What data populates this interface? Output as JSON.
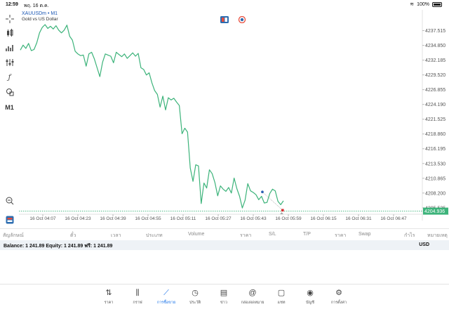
{
  "status_bar": {
    "time": "12:59",
    "date": "พฤ. 16 ต.ค.",
    "battery": "100%"
  },
  "chart": {
    "symbol": "XAUUSDm • M1",
    "description": "Gold vs US Dollar",
    "timeframe": "M1",
    "current_price_label": "4204.936",
    "line_color": "#3cb37a",
    "price_line_color": "#3cb37a"
  },
  "chart_data": {
    "type": "line",
    "y_ticks": [
      "4237.515",
      "4234.850",
      "4232.185",
      "4229.520",
      "4226.855",
      "4224.190",
      "4221.525",
      "4218.860",
      "4216.195",
      "4213.530",
      "4210.865",
      "4208.200",
      "4205.535"
    ],
    "x_ticks": [
      "16 Oct 04:07",
      "16 Oct 04:23",
      "16 Oct 04:39",
      "16 Oct 04:55",
      "16 Oct 05:11",
      "16 Oct 05:27",
      "16 Oct 05:43",
      "16 Oct 05:59",
      "16 Oct 06:15",
      "16 Oct 06:31",
      "16 Oct 06:47"
    ],
    "ylim": [
      4204.5,
      4240.5
    ],
    "current_price": 4204.936,
    "x": [
      0,
      1,
      2,
      3,
      4,
      5,
      6,
      7,
      8,
      9,
      10,
      11,
      12,
      13,
      14,
      15,
      16,
      17,
      18,
      19,
      20,
      21,
      22,
      23,
      24,
      25,
      26,
      27,
      28,
      29,
      30,
      31,
      32,
      33,
      34,
      35,
      36,
      37,
      38,
      39,
      40,
      41,
      42,
      43,
      44,
      45,
      46,
      47,
      48,
      49,
      50,
      51,
      52,
      53,
      54,
      55,
      56,
      57,
      58,
      59,
      60,
      61,
      62,
      63,
      64,
      65,
      66,
      67,
      68,
      69,
      70,
      71,
      72,
      73,
      74,
      75,
      76,
      77,
      78,
      79,
      80,
      81,
      82,
      83,
      84,
      85,
      86,
      87,
      88,
      89,
      90,
      91,
      92,
      93,
      94,
      95,
      96
    ],
    "values": [
      4234.0,
      4234.9,
      4234.3,
      4235.2,
      4233.9,
      4234.1,
      4235.3,
      4237.1,
      4238.1,
      4238.6,
      4237.9,
      4238.3,
      4237.8,
      4238.4,
      4237.6,
      4237.1,
      4237.6,
      4238.5,
      4236.5,
      4235.8,
      4233.8,
      4233.3,
      4233.0,
      4233.1,
      4231.1,
      4233.3,
      4233.6,
      4232.4,
      4230.8,
      4229.2,
      4231.8,
      4233.3,
      4233.1,
      4232.9,
      4231.7,
      4233.6,
      4233.2,
      4232.8,
      4233.3,
      4232.5,
      4233.0,
      4233.5,
      4232.9,
      4233.4,
      4230.8,
      4230.5,
      4229.5,
      4229.9,
      4228.1,
      4226.7,
      4226.0,
      4223.7,
      4225.7,
      4223.2,
      4225.4,
      4225.0,
      4225.3,
      4224.6,
      4224.0,
      4218.9,
      4219.9,
      4219.2,
      4212.7,
      4210.3,
      4213.3,
      4213.1,
      4206.3,
      4210.0,
      4209.1,
      4212.4,
      4211.7,
      4210.1,
      4207.7,
      4209.5,
      4208.9,
      4208.5,
      4209.2,
      4208.2,
      4210.9,
      4209.0,
      4207.6,
      4205.5,
      4206.9,
      4209.9,
      4208.6,
      4208.3,
      4207.9,
      4207.0,
      4207.6,
      4206.4,
      4206.5,
      4208.1,
      4208.9,
      4208.6,
      4206.7,
      4206.1,
      4206.8
    ]
  },
  "positions": {
    "columns": [
      "สัญลักษณ์",
      "ตั๋ว",
      "เวลา",
      "ประเภท",
      "Volume",
      "ราคา",
      "S/L",
      "T/P",
      "ราคา",
      "Swap",
      "กำไร",
      "หมายเหตุ"
    ]
  },
  "balance": {
    "text": "Balance: 1 241.89 Equity: 1 241.89 ฟรี: 1 241.89",
    "currency": "USD"
  },
  "bottom_nav": [
    {
      "label": "ราคา",
      "icon": "quotes-icon",
      "glyph": "⇅"
    },
    {
      "label": "กราฟ",
      "icon": "chart-icon",
      "glyph": "⫼"
    },
    {
      "label": "การซื้อขาย",
      "icon": "trade-icon",
      "glyph": "⟋",
      "active": true
    },
    {
      "label": "ประวัติ",
      "icon": "history-icon",
      "glyph": "◷"
    },
    {
      "label": "ข่าว",
      "icon": "news-icon",
      "glyph": "▤"
    },
    {
      "label": "กล่องจดหมาย",
      "icon": "mailbox-icon",
      "glyph": "@"
    },
    {
      "label": "แชท",
      "icon": "chat-icon",
      "glyph": "▢"
    },
    {
      "label": "บัญชี",
      "icon": "account-icon",
      "glyph": "◉"
    },
    {
      "label": "การตั้งค่า",
      "icon": "settings-icon",
      "glyph": "⚙"
    }
  ]
}
